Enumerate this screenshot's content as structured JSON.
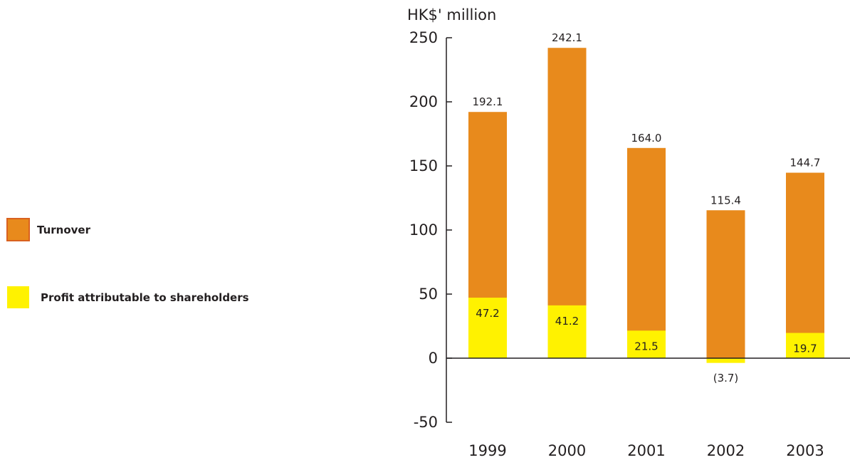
{
  "chart_data": {
    "type": "bar",
    "ylabel": "HK$' million",
    "categories": [
      "1999",
      "2000",
      "2001",
      "2002",
      "2003"
    ],
    "series": [
      {
        "name": "Turnover",
        "values": [
          192.1,
          242.1,
          164.0,
          115.4,
          144.7
        ],
        "labels": [
          "192.1",
          "242.1",
          "164.0",
          "115.4",
          "144.7"
        ],
        "color": "#e88a1c"
      },
      {
        "name": "Profit attributable to shareholders",
        "values": [
          47.2,
          41.2,
          21.5,
          -3.7,
          19.7
        ],
        "labels": [
          "47.2",
          "41.2",
          "21.5",
          "(3.7)",
          "19.7"
        ],
        "color": "#fff200"
      }
    ],
    "ylim": [
      -50,
      250
    ],
    "yticks": [
      "-50",
      "0",
      "50",
      "100",
      "150",
      "200",
      "250"
    ],
    "grid": false,
    "legend_placement": "left"
  }
}
